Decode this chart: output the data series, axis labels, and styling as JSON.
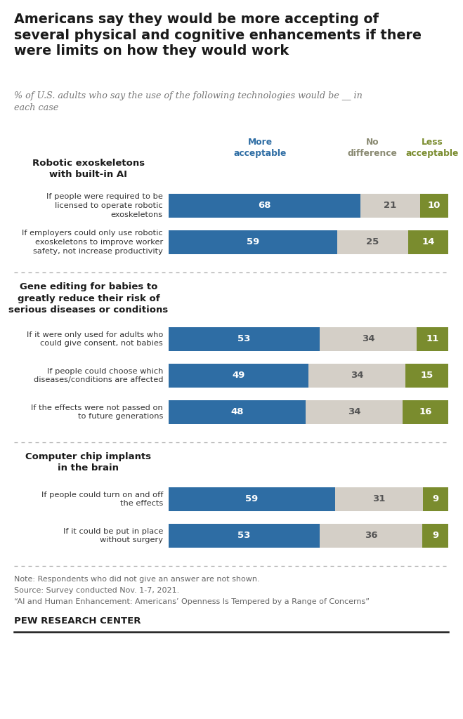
{
  "title": "Americans say they would be more accepting of\nseveral physical and cognitive enhancements if there\nwere limits on how they would work",
  "subtitle": "% of U.S. adults who say the use of the following technologies would be __ in\neach case",
  "sections": [
    {
      "header": "Robotic exoskeletons\nwith built-in AI",
      "bars": [
        {
          "label": "If people were required to be\nlicensed to operate robotic\nexoskeletons",
          "more": 68,
          "no_diff": 21,
          "less": 10
        },
        {
          "label": "If employers could only use robotic\nexoskeletons to improve worker\nsafety, not increase productivity",
          "more": 59,
          "no_diff": 25,
          "less": 14
        }
      ]
    },
    {
      "header": "Gene editing for babies to\ngreatly reduce their risk of\nserious diseases or conditions",
      "bars": [
        {
          "label": "If it were only used for adults who\ncould give consent, not babies",
          "more": 53,
          "no_diff": 34,
          "less": 11
        },
        {
          "label": "If people could choose which\ndiseases/conditions are affected",
          "more": 49,
          "no_diff": 34,
          "less": 15
        },
        {
          "label": "If the effects were not passed on\nto future generations",
          "more": 48,
          "no_diff": 34,
          "less": 16
        }
      ]
    },
    {
      "header": "Computer chip implants\nin the brain",
      "bars": [
        {
          "label": "If people could turn on and off\nthe effects",
          "more": 59,
          "no_diff": 31,
          "less": 9
        },
        {
          "label": "If it could be put in place\nwithout surgery",
          "more": 53,
          "no_diff": 36,
          "less": 9
        }
      ]
    }
  ],
  "colors": {
    "more": "#2e6da4",
    "no_diff": "#d4cfc7",
    "less": "#7a8c2e"
  },
  "note1": "Note: Respondents who did not give an answer are not shown.",
  "note2": "Source: Survey conducted Nov. 1-7, 2021.",
  "note3": "“AI and Human Enhancement: Americans’ Openness Is Tempered by a Range of Concerns”",
  "footer": "PEW RESEARCH CENTER",
  "label_color_more": "#2e6da4",
  "label_color_nodiff": "#8a8a72",
  "label_color_less": "#7a8c2e"
}
